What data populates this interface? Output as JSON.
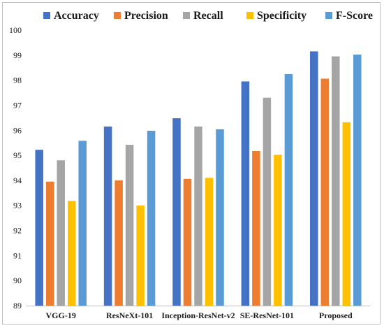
{
  "chart_data": {
    "type": "bar",
    "title": "",
    "xlabel": "",
    "ylabel": "",
    "categories": [
      "VGG-19",
      "ResNeXt-101",
      "Inception-ResNet-v2",
      "SE-ResNet-101",
      "Proposed"
    ],
    "series": [
      {
        "name": "Accuracy",
        "color": "#4472c4",
        "values": [
          95.22,
          96.15,
          96.48,
          97.95,
          99.15
        ]
      },
      {
        "name": "Precision",
        "color": "#ed7d31",
        "values": [
          93.95,
          94.0,
          94.06,
          95.17,
          98.06
        ]
      },
      {
        "name": "Recall",
        "color": "#a5a5a5",
        "values": [
          94.8,
          95.42,
          96.15,
          97.3,
          98.95
        ]
      },
      {
        "name": "Specificity",
        "color": "#ffc000",
        "values": [
          93.18,
          93.0,
          94.1,
          95.02,
          96.32
        ]
      },
      {
        "name": "F-Score",
        "color": "#5b9bd5",
        "values": [
          95.58,
          95.98,
          96.04,
          98.24,
          99.02
        ]
      }
    ],
    "ylim": [
      89,
      100
    ],
    "yticks": [
      89,
      90,
      91,
      92,
      93,
      94,
      95,
      96,
      97,
      98,
      99,
      100
    ],
    "grid": false,
    "legend_position": "top"
  }
}
